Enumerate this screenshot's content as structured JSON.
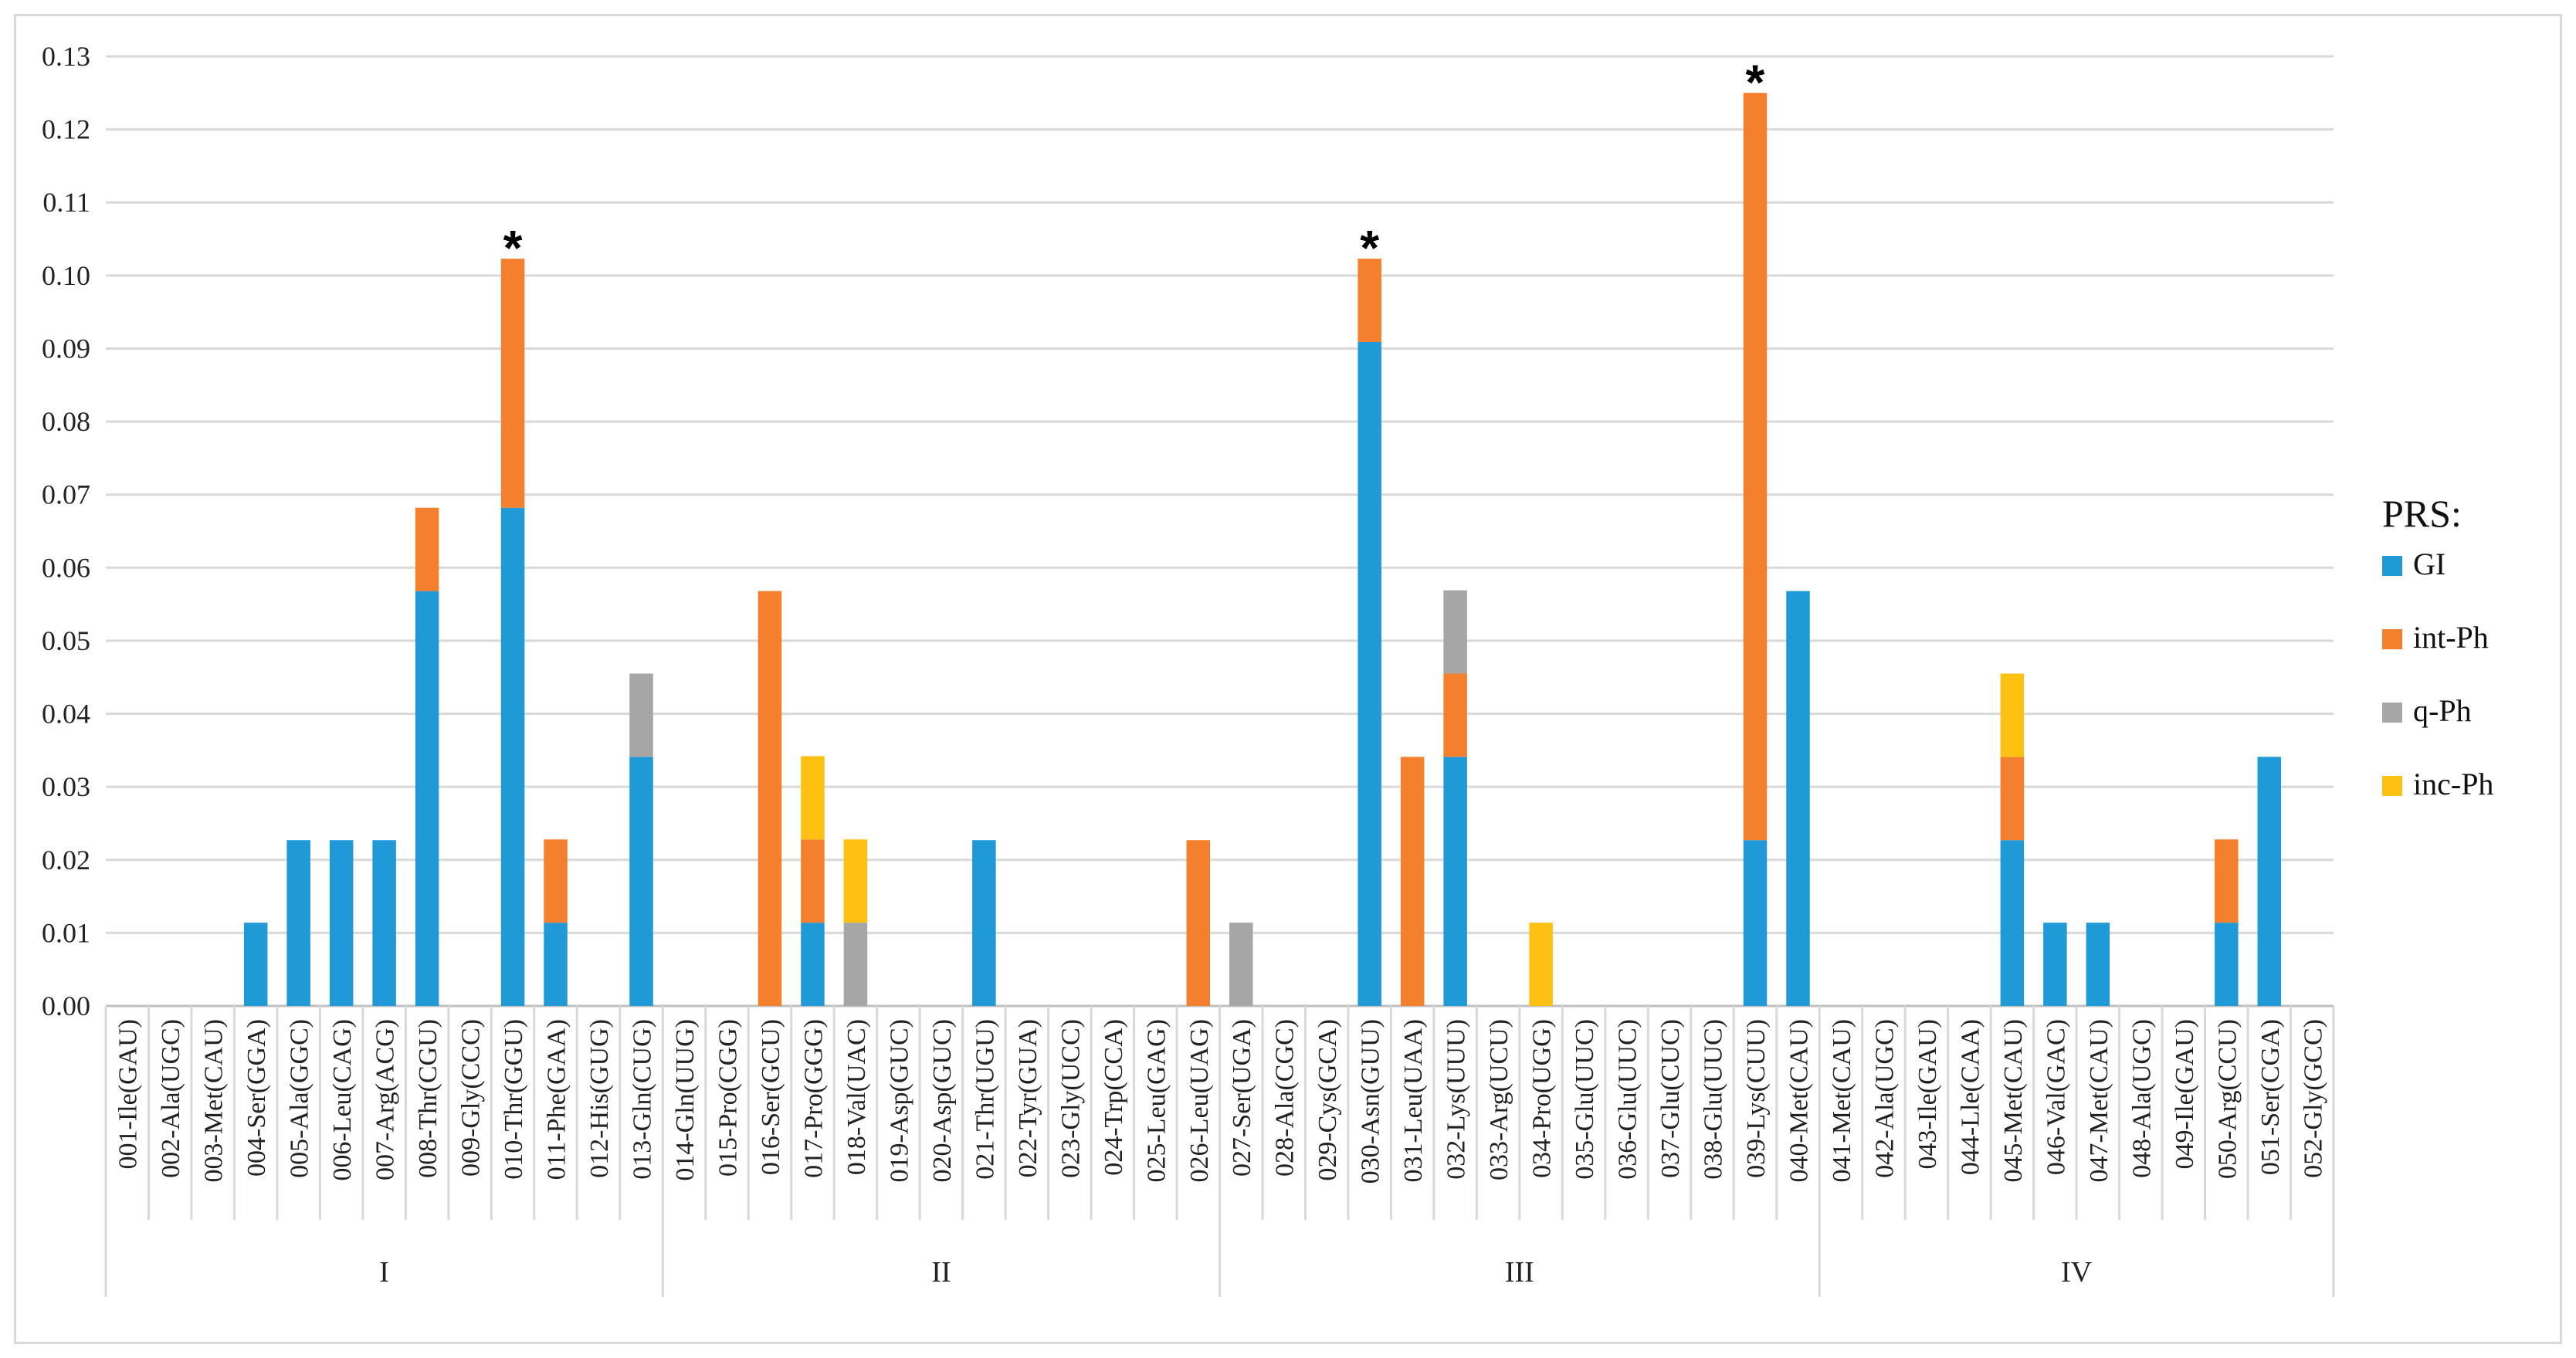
{
  "chart_data": {
    "type": "bar",
    "stacked": true,
    "title": "",
    "xlabel": "",
    "ylabel": "",
    "ylim": [
      0,
      0.13
    ],
    "yticks": [
      "0.00",
      "0.01",
      "0.02",
      "0.03",
      "0.04",
      "0.05",
      "0.06",
      "0.07",
      "0.08",
      "0.09",
      "0.10",
      "0.11",
      "0.12",
      "0.13"
    ],
    "grid": true,
    "legend": {
      "title": "PRS:",
      "placement": "right"
    },
    "categories": [
      "001-Ile(GAU)",
      "002-Ala(UGC)",
      "003-Met(CAU)",
      "004-Ser(GGA)",
      "005-Ala(GGC)",
      "006-Leu(CAG)",
      "007-Arg(ACG)",
      "008-Thr(CGU)",
      "009-Gly(CCC)",
      "010-Thr(GGU)",
      "011-Phe(GAA)",
      "012-His(GUG)",
      "013-Gln(CUG)",
      "014-Gln(UUG)",
      "015-Pro(CGG)",
      "016-Ser(GCU)",
      "017-Pro(GGG)",
      "018-Val(UAC)",
      "019-Asp(GUC)",
      "020-Asp(GUC)",
      "021-Thr(UGU)",
      "022-Tyr(GUA)",
      "023-Gly(UCC)",
      "024-Trp(CCA)",
      "025-Leu(GAG)",
      "026-Leu(UAG)",
      "027-Ser(UGA)",
      "028-Ala(CGC)",
      "029-Cys(GCA)",
      "030-Asn(GUU)",
      "031-Leu(UAA)",
      "032-Lys(UUU)",
      "033-Arg(UCU)",
      "034-Pro(UGG)",
      "035-Glu(UUC)",
      "036-Glu(UUC)",
      "037-Glu(CUC)",
      "038-Glu(UUC)",
      "039-Lys(CUU)",
      "040-Met(CAU)",
      "041-Met(CAU)",
      "042-Ala(UGC)",
      "043-Ile(GAU)",
      "044-Lle(CAA)",
      "045-Met(CAU)",
      "046-Val(GAC)",
      "047-Met(CAU)",
      "048-Ala(UGC)",
      "049-Ile(GAU)",
      "050-Arg(CCU)",
      "051-Ser(CGA)",
      "052-Gly(GCC)"
    ],
    "groups": [
      {
        "name": "I",
        "start": 0,
        "end": 12
      },
      {
        "name": "II",
        "start": 13,
        "end": 25
      },
      {
        "name": "III",
        "start": 26,
        "end": 39
      },
      {
        "name": "IV",
        "start": 40,
        "end": 51
      }
    ],
    "series": [
      {
        "name": "GI",
        "color": "#1f9ad6",
        "values": [
          0,
          0,
          0,
          0.0114,
          0.0227,
          0.0227,
          0.0227,
          0.0568,
          0,
          0.0682,
          0.0114,
          0,
          0.0341,
          0,
          0,
          0,
          0.0114,
          0,
          0,
          0,
          0.0227,
          0,
          0,
          0,
          0,
          0,
          0,
          0,
          0,
          0.0909,
          0,
          0.0341,
          0,
          0,
          0,
          0,
          0,
          0,
          0.0227,
          0.0568,
          0,
          0,
          0,
          0,
          0.0227,
          0.0114,
          0.0114,
          0,
          0,
          0.0114,
          0.0341,
          0
        ]
      },
      {
        "name": "int-Ph",
        "color": "#f47f2c",
        "values": [
          0,
          0,
          0,
          0,
          0,
          0,
          0,
          0.0114,
          0,
          0.0341,
          0.0114,
          0,
          0,
          0,
          0,
          0.0568,
          0.0114,
          0,
          0,
          0,
          0,
          0,
          0,
          0,
          0,
          0.0227,
          0,
          0,
          0,
          0.0114,
          0.0341,
          0.0114,
          0,
          0,
          0,
          0,
          0,
          0,
          0.1023,
          0,
          0,
          0,
          0,
          0,
          0.0114,
          0,
          0,
          0,
          0,
          0.0114,
          0,
          0
        ]
      },
      {
        "name": "q-Ph",
        "color": "#a6a6a6",
        "values": [
          0,
          0,
          0,
          0,
          0,
          0,
          0,
          0,
          0,
          0,
          0,
          0,
          0.0114,
          0,
          0,
          0,
          0,
          0.0114,
          0,
          0,
          0,
          0,
          0,
          0,
          0,
          0,
          0.0114,
          0,
          0,
          0,
          0,
          0.0114,
          0,
          0,
          0,
          0,
          0,
          0,
          0,
          0,
          0,
          0,
          0,
          0,
          0,
          0,
          0,
          0,
          0,
          0,
          0,
          0
        ]
      },
      {
        "name": "inc-Ph",
        "color": "#fec113",
        "values": [
          0,
          0,
          0,
          0,
          0,
          0,
          0,
          0,
          0,
          0,
          0,
          0,
          0,
          0,
          0,
          0,
          0.0114,
          0.0114,
          0,
          0,
          0,
          0,
          0,
          0,
          0,
          0,
          0,
          0,
          0,
          0,
          0,
          0,
          0,
          0.0114,
          0,
          0,
          0,
          0,
          0,
          0,
          0,
          0,
          0,
          0,
          0.0114,
          0,
          0,
          0,
          0,
          0,
          0,
          0
        ]
      }
    ],
    "annotations": [
      {
        "text": "*",
        "category": "010-Thr(GGU)"
      },
      {
        "text": "*",
        "category": "030-Asn(GUU)"
      },
      {
        "text": "*",
        "category": "039-Lys(CUU)"
      }
    ]
  }
}
